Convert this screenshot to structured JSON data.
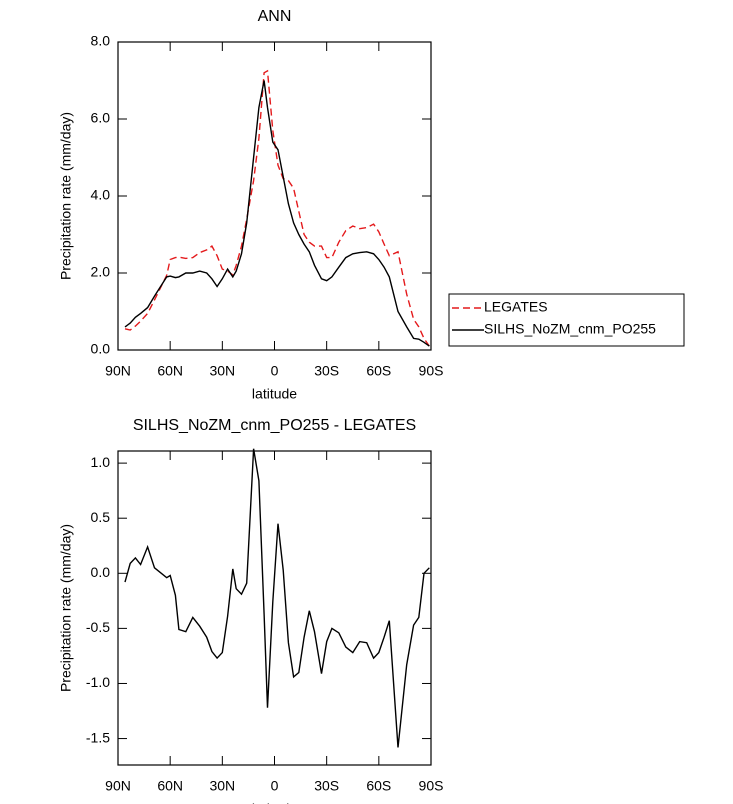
{
  "chart_data": [
    {
      "type": "line",
      "title": "ANN",
      "x_label": "latitude",
      "y_label": "Precipitation rate (mm/day)",
      "x": [
        86,
        83,
        80,
        77,
        73,
        69,
        62,
        60,
        57,
        55,
        51,
        47,
        43,
        39,
        36,
        33,
        30,
        27,
        24,
        22,
        19,
        16,
        12,
        9,
        6,
        4,
        1,
        -2,
        -5,
        -8,
        -11,
        -14,
        -17,
        -20,
        -23,
        -27,
        -30,
        -33,
        -37,
        -41,
        -45,
        -49,
        -53,
        -57,
        -60,
        -63,
        -66,
        -71,
        -76,
        -80,
        -83,
        -86,
        -89
      ],
      "series": [
        {
          "name": "LEGATES",
          "color": "#e41a1c",
          "dashed": true,
          "values": [
            0.55,
            0.52,
            0.62,
            0.75,
            0.95,
            1.3,
            1.94,
            2.35,
            2.4,
            2.41,
            2.38,
            2.4,
            2.53,
            2.6,
            2.7,
            2.45,
            2.1,
            2.05,
            1.95,
            2.2,
            2.7,
            3.4,
            4.4,
            5.5,
            7.2,
            7.25,
            5.7,
            4.8,
            4.45,
            4.4,
            4.2,
            3.6,
            3.0,
            2.8,
            2.7,
            2.7,
            2.4,
            2.4,
            2.8,
            3.1,
            3.22,
            3.15,
            3.18,
            3.27,
            3.07,
            2.75,
            2.45,
            2.55,
            1.45,
            0.8,
            0.6,
            0.3,
            0.1
          ]
        },
        {
          "name": "SILHS_NoZM_cnm_PO255",
          "color": "#000000",
          "dashed": false,
          "values": [
            0.6,
            0.7,
            0.85,
            0.95,
            1.1,
            1.4,
            1.9,
            1.92,
            1.88,
            1.9,
            2.0,
            2.0,
            2.05,
            2.0,
            1.85,
            1.65,
            1.85,
            2.1,
            1.9,
            2.05,
            2.5,
            3.3,
            5.0,
            6.3,
            7.0,
            6.3,
            5.4,
            5.2,
            4.5,
            3.8,
            3.3,
            3.0,
            2.75,
            2.55,
            2.2,
            1.85,
            1.8,
            1.9,
            2.15,
            2.4,
            2.5,
            2.53,
            2.55,
            2.5,
            2.35,
            2.15,
            1.9,
            1.0,
            0.6,
            0.3,
            0.28,
            0.2,
            0.1
          ]
        }
      ],
      "xlim": [
        90,
        -90
      ],
      "xticks": [
        {
          "value": 90,
          "label": "90N"
        },
        {
          "value": 60,
          "label": "60N"
        },
        {
          "value": 30,
          "label": "30N"
        },
        0,
        {
          "value": -30,
          "label": "30S"
        },
        {
          "value": -60,
          "label": "60S"
        },
        {
          "value": -90,
          "label": "90S"
        }
      ],
      "ylim": [
        0,
        8
      ],
      "yticks": [
        {
          "value": 0,
          "label": "0.0"
        },
        {
          "value": 2,
          "label": "2.0"
        },
        {
          "value": 4,
          "label": "4.0"
        },
        {
          "value": 6,
          "label": "6.0"
        },
        {
          "value": 8,
          "label": "8.0"
        }
      ],
      "legend": "right"
    },
    {
      "type": "line",
      "title": "SILHS_NoZM_cnm_PO255 - LEGATES",
      "x_label": "latitude",
      "y_label": "Precipitation rate (mm/day)",
      "x": [
        86,
        83,
        80,
        77,
        73,
        69,
        62,
        60,
        57,
        55,
        51,
        47,
        43,
        39,
        36,
        33,
        30,
        27,
        24,
        22,
        19,
        16,
        12,
        9,
        6,
        4,
        1,
        -2,
        -5,
        -8,
        -11,
        -14,
        -17,
        -20,
        -23,
        -27,
        -30,
        -33,
        -37,
        -41,
        -45,
        -49,
        -53,
        -57,
        -60,
        -63,
        -66,
        -71,
        -76,
        -80,
        -83,
        -86,
        -89
      ],
      "series": [
        {
          "color": "#000000",
          "values": [
            -0.08,
            0.09,
            0.14,
            0.08,
            0.24,
            0.05,
            -0.04,
            -0.02,
            -0.2,
            -0.51,
            -0.53,
            -0.4,
            -0.48,
            -0.58,
            -0.71,
            -0.77,
            -0.72,
            -0.39,
            0.04,
            -0.14,
            -0.19,
            -0.09,
            1.13,
            0.84,
            -0.37,
            -1.22,
            -0.26,
            0.45,
            0.03,
            -0.63,
            -0.94,
            -0.9,
            -0.58,
            -0.34,
            -0.53,
            -0.91,
            -0.62,
            -0.5,
            -0.54,
            -0.67,
            -0.72,
            -0.62,
            -0.63,
            -0.77,
            -0.72,
            -0.58,
            -0.43,
            -1.58,
            -0.83,
            -0.47,
            -0.4,
            0.0,
            0.05
          ]
        }
      ],
      "xlim": [
        90,
        -90
      ],
      "xticks": [
        {
          "value": 90,
          "label": "90N"
        },
        {
          "value": 60,
          "label": "60N"
        },
        {
          "value": 30,
          "label": "30N"
        },
        0,
        {
          "value": -30,
          "label": "30S"
        },
        {
          "value": -60,
          "label": "60S"
        },
        {
          "value": -90,
          "label": "90S"
        }
      ],
      "ylim": [
        -1.74,
        1.11
      ],
      "yticks": [
        {
          "value": -1.5,
          "label": "-1.5"
        },
        {
          "value": -1,
          "label": "-1.0"
        },
        -0.5,
        {
          "value": 0,
          "label": "0.0"
        },
        0.5,
        {
          "value": 1,
          "label": "1.0"
        }
      ]
    }
  ]
}
